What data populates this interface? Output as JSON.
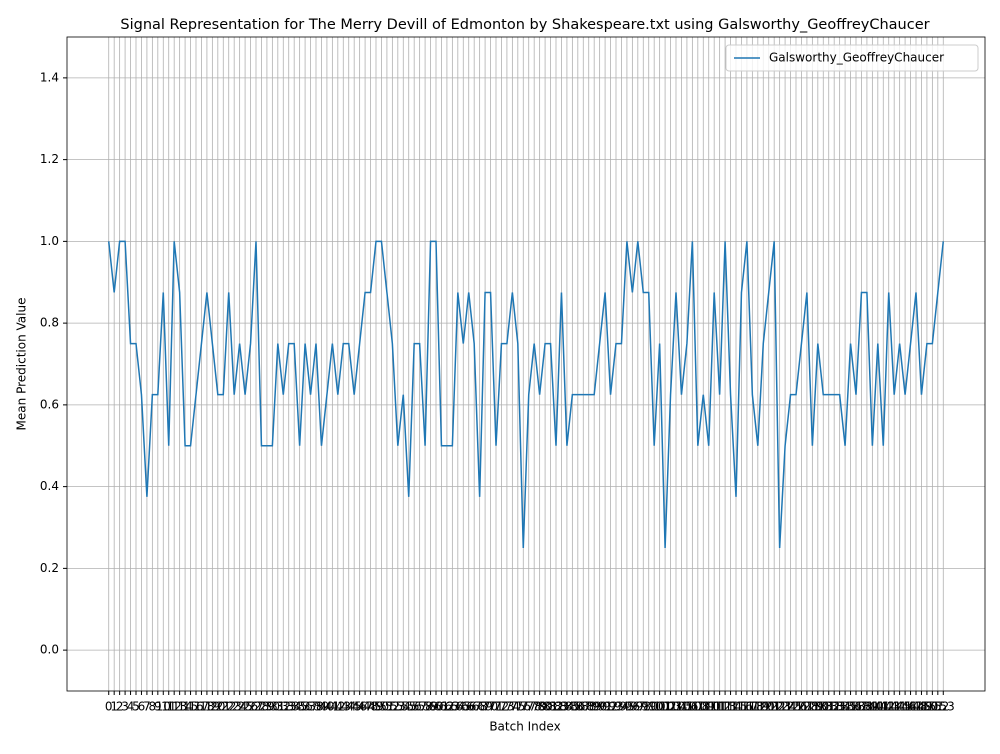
{
  "chart_data": {
    "type": "line",
    "title": "Signal Representation for The Merry Devill of Edmonton by Shakespeare.txt using Galsworthy_GeoffreyChaucer",
    "xlabel": "Batch Index",
    "ylabel": "Mean Prediction Value",
    "x": [
      0,
      1,
      2,
      3,
      4,
      5,
      6,
      7,
      8,
      9,
      10,
      11,
      12,
      13,
      14,
      15,
      16,
      17,
      18,
      19,
      20,
      21,
      22,
      23,
      24,
      25,
      26,
      27,
      28,
      29,
      30,
      31,
      32,
      33,
      34,
      35,
      36,
      37,
      38,
      39,
      40,
      41,
      42,
      43,
      44,
      45,
      46,
      47,
      48,
      49,
      50,
      51,
      52,
      53,
      54,
      55,
      56,
      57,
      58,
      59,
      60,
      61,
      62,
      63,
      64,
      65,
      66,
      67,
      68,
      69,
      70,
      71,
      72,
      73,
      74,
      75,
      76,
      77,
      78,
      79,
      80,
      81,
      82,
      83,
      84,
      85,
      86,
      87,
      88,
      89,
      90,
      91,
      92,
      93,
      94,
      95,
      96,
      97,
      98,
      99,
      100,
      101,
      102,
      103,
      104,
      105,
      106,
      107,
      108,
      109,
      110,
      111,
      112,
      113,
      114,
      115,
      116,
      117,
      118,
      119,
      120,
      121,
      122,
      123,
      124,
      125,
      126,
      127,
      128,
      129,
      130,
      131,
      132,
      133,
      134,
      135,
      136,
      137,
      138,
      139,
      140,
      141,
      142,
      143,
      144,
      145,
      146,
      147,
      148,
      149,
      150,
      151,
      152,
      153
    ],
    "series": [
      {
        "name": "Galsworthy_GeoffreyChaucer",
        "color": "#1f77b4",
        "values": [
          1.0,
          0.875,
          1.0,
          1.0,
          0.75,
          0.75,
          0.625,
          0.375,
          0.625,
          0.625,
          0.875,
          0.5,
          1.0,
          0.875,
          0.5,
          0.5,
          0.625,
          0.75,
          0.875,
          0.75,
          0.625,
          0.625,
          0.875,
          0.625,
          0.75,
          0.625,
          0.75,
          1.0,
          0.5,
          0.5,
          0.5,
          0.75,
          0.625,
          0.75,
          0.75,
          0.5,
          0.75,
          0.625,
          0.75,
          0.5,
          0.625,
          0.75,
          0.625,
          0.75,
          0.75,
          0.625,
          0.75,
          0.875,
          0.875,
          1.0,
          1.0,
          0.875,
          0.75,
          0.5,
          0.625,
          0.375,
          0.75,
          0.75,
          0.5,
          1.0,
          1.0,
          0.5,
          0.5,
          0.5,
          0.875,
          0.75,
          0.875,
          0.75,
          0.375,
          0.875,
          0.875,
          0.5,
          0.75,
          0.75,
          0.875,
          0.75,
          0.25,
          0.625,
          0.75,
          0.625,
          0.75,
          0.75,
          0.5,
          0.875,
          0.5,
          0.625,
          0.625,
          0.625,
          0.625,
          0.625,
          0.75,
          0.875,
          0.625,
          0.75,
          0.75,
          1.0,
          0.875,
          1.0,
          0.875,
          0.875,
          0.5,
          0.75,
          0.25,
          0.625,
          0.875,
          0.625,
          0.75,
          1.0,
          0.5,
          0.625,
          0.5,
          0.875,
          0.625,
          1.0,
          0.625,
          0.375,
          0.875,
          1.0,
          0.625,
          0.5,
          0.75,
          0.875,
          1.0,
          0.25,
          0.5,
          0.625,
          0.625,
          0.75,
          0.875,
          0.5,
          0.75,
          0.625,
          0.625,
          0.625,
          0.625,
          0.5,
          0.75,
          0.625,
          0.875,
          0.875,
          0.5,
          0.75,
          0.5,
          0.875,
          0.625,
          0.75,
          0.625,
          0.75,
          0.875,
          0.625,
          0.75,
          0.75,
          0.875,
          1.0
        ]
      }
    ],
    "xlim": [
      -7.65,
      160.65
    ],
    "xticks": [
      0,
      1,
      2,
      3,
      4,
      5,
      6,
      7,
      8,
      9,
      10,
      11,
      12,
      13,
      14,
      15,
      16,
      17,
      18,
      19,
      20,
      21,
      22,
      23,
      24,
      25,
      26,
      27,
      28,
      29,
      30,
      31,
      32,
      33,
      34,
      35,
      36,
      37,
      38,
      39,
      40,
      41,
      42,
      43,
      44,
      45,
      46,
      47,
      48,
      49,
      50,
      51,
      52,
      53,
      54,
      55,
      56,
      57,
      58,
      59,
      60,
      61,
      62,
      63,
      64,
      65,
      66,
      67,
      68,
      69,
      70,
      71,
      72,
      73,
      74,
      75,
      76,
      77,
      78,
      79,
      80,
      81,
      82,
      83,
      84,
      85,
      86,
      87,
      88,
      89,
      90,
      91,
      92,
      93,
      94,
      95,
      96,
      97,
      98,
      99,
      100,
      101,
      102,
      103,
      104,
      105,
      106,
      107,
      108,
      109,
      110,
      111,
      112,
      113,
      114,
      115,
      116,
      117,
      118,
      119,
      120,
      121,
      122,
      123,
      124,
      125,
      126,
      127,
      128,
      129,
      130,
      131,
      132,
      133,
      134,
      135,
      136,
      137,
      138,
      139,
      140,
      141,
      142,
      143,
      144,
      145,
      146,
      147,
      148,
      149,
      150,
      151,
      152,
      153
    ],
    "ylim": [
      -0.1,
      1.5
    ],
    "yticks": [
      {
        "value": 0,
        "label": "0.0"
      },
      0.2,
      0.4,
      0.6,
      0.8,
      {
        "value": 1,
        "label": "1.0"
      },
      1.2,
      1.4
    ],
    "grid": true,
    "legend": "upper right"
  }
}
